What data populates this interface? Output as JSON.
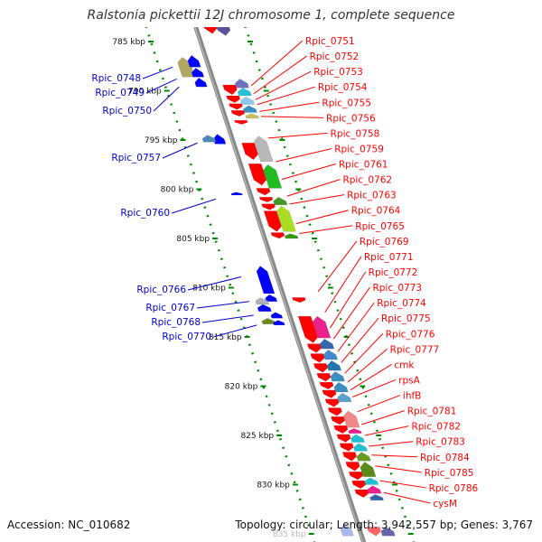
{
  "header": {
    "title": "Ralstonia pickettii 12J chromosome 1, complete sequence"
  },
  "footer": {
    "accession": "Accession: NC_010682",
    "summary": "Topology: circular; Length: 3,942,557 bp; Genes: 3,767"
  },
  "colors": {
    "red": "#ff0000",
    "blue": "#0000cc",
    "green": "#008800",
    "axis": "#888888"
  },
  "ticks": [
    {
      "kb": 785,
      "label": "785 kbp"
    },
    {
      "kb": 790,
      "label": "790 kbp"
    },
    {
      "kb": 795,
      "label": "795 kbp"
    },
    {
      "kb": 800,
      "label": "800 kbp"
    },
    {
      "kb": 805,
      "label": "805 kbp"
    },
    {
      "kb": 810,
      "label": "810 kbp"
    },
    {
      "kb": 815,
      "label": "815 kbp"
    },
    {
      "kb": 820,
      "label": "820 kbp"
    },
    {
      "kb": 825,
      "label": "825 kbp"
    },
    {
      "kb": 830,
      "label": "830 kbp"
    },
    {
      "kb": 835,
      "label": "835 kbp"
    }
  ],
  "right_labels": [
    {
      "name": "Rpic_0751",
      "kb": 789.5
    },
    {
      "name": "Rpic_0752",
      "kb": 790.3
    },
    {
      "name": "Rpic_0753",
      "kb": 790.9
    },
    {
      "name": "Rpic_0754",
      "kb": 791.4
    },
    {
      "name": "Rpic_0755",
      "kb": 792.1
    },
    {
      "name": "Rpic_0756",
      "kb": 792.6
    },
    {
      "name": "Rpic_0758",
      "kb": 794.8
    },
    {
      "name": "Rpic_0759",
      "kb": 797.2
    },
    {
      "name": "Rpic_0761",
      "kb": 799.0
    },
    {
      "name": "Rpic_0762",
      "kb": 800.7
    },
    {
      "name": "Rpic_0763",
      "kb": 801.5
    },
    {
      "name": "Rpic_0764",
      "kb": 803.5
    },
    {
      "name": "Rpic_0765",
      "kb": 804.5
    },
    {
      "name": "Rpic_0769",
      "kb": 810.4
    },
    {
      "name": "Rpic_0771",
      "kb": 812.5
    },
    {
      "name": "Rpic_0772",
      "kb": 814.1
    },
    {
      "name": "Rpic_0773",
      "kb": 815.2
    },
    {
      "name": "Rpic_0774",
      "kb": 816.5
    },
    {
      "name": "Rpic_0775",
      "kb": 817.6
    },
    {
      "name": "Rpic_0776",
      "kb": 818.7
    },
    {
      "name": "Rpic_0777",
      "kb": 819.6
    },
    {
      "name": "cmk",
      "kb": 820.4
    },
    {
      "name": "rpsA",
      "kb": 821.1
    },
    {
      "name": "ihfB",
      "kb": 822.6
    },
    {
      "name": "Rpic_0781",
      "kb": 823.9
    },
    {
      "name": "Rpic_0782",
      "kb": 825.0
    },
    {
      "name": "Rpic_0783",
      "kb": 826.1
    },
    {
      "name": "Rpic_0784",
      "kb": 827.0
    },
    {
      "name": "Rpic_0785",
      "kb": 828.1
    },
    {
      "name": "Rpic_0786",
      "kb": 829.6
    },
    {
      "name": "cysM",
      "kb": 830.8
    }
  ],
  "left_labels": [
    {
      "name": "Rpic_0748",
      "kb": 787.6
    },
    {
      "name": "Rpic_0749",
      "kb": 788.8
    },
    {
      "name": "Rpic_0750",
      "kb": 789.6
    },
    {
      "name": "Rpic_0757",
      "kb": 795.3
    },
    {
      "name": "Rpic_0760",
      "kb": 801.0
    },
    {
      "name": "Rpic_0766",
      "kb": 808.9
    },
    {
      "name": "Rpic_0767",
      "kb": 811.4
    },
    {
      "name": "Rpic_0768",
      "kb": 812.8
    },
    {
      "name": "Rpic_0770",
      "kb": 813.8
    }
  ],
  "genes": [
    {
      "track": 1,
      "start": 782.8,
      "end": 784.2,
      "strand": "-",
      "color": "#ff0000"
    },
    {
      "track": 2,
      "start": 782.8,
      "end": 784.4,
      "strand": "-",
      "color": "#5c4f9e"
    },
    {
      "track": 2,
      "start": 781.8,
      "end": 782.6,
      "strand": "+",
      "color": "#2cc0d8"
    },
    {
      "track": -2,
      "start": 786.6,
      "end": 788.6,
      "strand": "+",
      "color": "#b0a860"
    },
    {
      "track": -1,
      "start": 786.4,
      "end": 787.6,
      "strand": "+",
      "color": "#0000ff"
    },
    {
      "track": -1,
      "start": 787.7,
      "end": 788.6,
      "strand": "+",
      "color": "#0000ff"
    },
    {
      "track": -1,
      "start": 788.7,
      "end": 789.6,
      "strand": "+",
      "color": "#0000ff"
    },
    {
      "track": 1,
      "start": 789.4,
      "end": 790.4,
      "strand": "-",
      "color": "#ff0000"
    },
    {
      "track": 2,
      "start": 788.8,
      "end": 789.7,
      "strand": "+",
      "color": "#7070c0"
    },
    {
      "track": 2,
      "start": 789.7,
      "end": 790.5,
      "strand": "+",
      "color": "#2cc0d8"
    },
    {
      "track": 1,
      "start": 790.5,
      "end": 791.2,
      "strand": "-",
      "color": "#ff0000"
    },
    {
      "track": 2,
      "start": 790.6,
      "end": 791.4,
      "strand": "+",
      "color": "#8ec7e8"
    },
    {
      "track": 1,
      "start": 791.3,
      "end": 791.9,
      "strand": "-",
      "color": "#ff0000"
    },
    {
      "track": 2,
      "start": 791.5,
      "end": 792.2,
      "strand": "+",
      "color": "#3b8fc0"
    },
    {
      "track": 1,
      "start": 792.0,
      "end": 792.6,
      "strand": "-",
      "color": "#ff0000"
    },
    {
      "track": 2,
      "start": 792.3,
      "end": 792.8,
      "strand": "+",
      "color": "#c8c060"
    },
    {
      "track": 1,
      "start": 793.0,
      "end": 793.4,
      "strand": "-",
      "color": "#ff0000"
    },
    {
      "track": -1,
      "start": 794.4,
      "end": 795.4,
      "strand": "+",
      "color": "#0000ff"
    },
    {
      "track": -2,
      "start": 794.5,
      "end": 795.2,
      "strand": "+",
      "color": "#4a88b8"
    },
    {
      "track": 1,
      "start": 795.3,
      "end": 797.0,
      "strand": "-",
      "color": "#ff0000"
    },
    {
      "track": 2,
      "start": 794.6,
      "end": 797.2,
      "strand": "+",
      "color": "#b8b8b8"
    },
    {
      "track": 1,
      "start": 797.4,
      "end": 799.6,
      "strand": "-",
      "color": "#ff0000"
    },
    {
      "track": 2,
      "start": 797.5,
      "end": 799.9,
      "strand": "+",
      "color": "#22bb22"
    },
    {
      "track": 1,
      "start": 799.9,
      "end": 800.6,
      "strand": "-",
      "color": "#ff0000"
    },
    {
      "track": -1,
      "start": 800.3,
      "end": 800.6,
      "strand": "+",
      "color": "#0000ff"
    },
    {
      "track": 1,
      "start": 800.8,
      "end": 801.3,
      "strand": "-",
      "color": "#ff0000"
    },
    {
      "track": 2,
      "start": 800.8,
      "end": 801.6,
      "strand": "+",
      "color": "#449922"
    },
    {
      "track": 1,
      "start": 801.5,
      "end": 802.1,
      "strand": "-",
      "color": "#ff0000"
    },
    {
      "track": 1,
      "start": 802.2,
      "end": 804.3,
      "strand": "-",
      "color": "#ff0000"
    },
    {
      "track": 2,
      "start": 801.7,
      "end": 804.3,
      "strand": "+",
      "color": "#aadd22"
    },
    {
      "track": 1,
      "start": 804.4,
      "end": 805.0,
      "strand": "-",
      "color": "#ff0000"
    },
    {
      "track": 2,
      "start": 804.5,
      "end": 805.0,
      "strand": "+",
      "color": "#339911"
    },
    {
      "track": -1,
      "start": 807.8,
      "end": 810.6,
      "strand": "+",
      "color": "#0000ff"
    },
    {
      "track": 1,
      "start": 811.0,
      "end": 811.5,
      "strand": "-",
      "color": "#ff0000"
    },
    {
      "track": -1,
      "start": 810.7,
      "end": 811.4,
      "strand": "+",
      "color": "#0000ff"
    },
    {
      "track": -2,
      "start": 811.0,
      "end": 811.7,
      "strand": "+",
      "color": "#b0b0b8"
    },
    {
      "track": -2,
      "start": 811.7,
      "end": 812.4,
      "strand": "+",
      "color": "#0000ff"
    },
    {
      "track": -1,
      "start": 812.5,
      "end": 813.1,
      "strand": "+",
      "color": "#0000ff"
    },
    {
      "track": -2,
      "start": 813.1,
      "end": 813.7,
      "strand": "+",
      "color": "#6a8a1a"
    },
    {
      "track": -1,
      "start": 813.3,
      "end": 813.8,
      "strand": "+",
      "color": "#0000ff"
    },
    {
      "track": 1,
      "start": 812.9,
      "end": 815.6,
      "strand": "-",
      "color": "#ff0000"
    },
    {
      "track": 2,
      "start": 812.9,
      "end": 815.1,
      "strand": "+",
      "color": "#e8228a"
    },
    {
      "track": 1,
      "start": 815.7,
      "end": 816.6,
      "strand": "-",
      "color": "#ff0000"
    },
    {
      "track": 2,
      "start": 815.2,
      "end": 816.2,
      "strand": "+",
      "color": "#3366aa"
    },
    {
      "track": 1,
      "start": 816.7,
      "end": 817.6,
      "strand": "-",
      "color": "#ff0000"
    },
    {
      "track": 2,
      "start": 816.3,
      "end": 817.3,
      "strand": "+",
      "color": "#4488cc"
    },
    {
      "track": 1,
      "start": 817.7,
      "end": 818.6,
      "strand": "-",
      "color": "#ff0000"
    },
    {
      "track": 2,
      "start": 817.4,
      "end": 818.4,
      "strand": "+",
      "color": "#2277aa"
    },
    {
      "track": 1,
      "start": 818.7,
      "end": 819.5,
      "strand": "-",
      "color": "#ff0000"
    },
    {
      "track": 2,
      "start": 818.5,
      "end": 819.5,
      "strand": "+",
      "color": "#3b8fc0"
    },
    {
      "track": 1,
      "start": 819.6,
      "end": 820.3,
      "strand": "-",
      "color": "#ff0000"
    },
    {
      "track": 2,
      "start": 819.6,
      "end": 820.6,
      "strand": "+",
      "color": "#3b8fc0"
    },
    {
      "track": 1,
      "start": 820.4,
      "end": 821.2,
      "strand": "-",
      "color": "#ff0000"
    },
    {
      "track": 2,
      "start": 820.7,
      "end": 821.6,
      "strand": "+",
      "color": "#5aa0cc"
    },
    {
      "track": 1,
      "start": 821.3,
      "end": 822.1,
      "strand": "-",
      "color": "#ff0000"
    },
    {
      "track": 1,
      "start": 822.2,
      "end": 823.0,
      "strand": "-",
      "color": "#ff0000"
    },
    {
      "track": 1,
      "start": 823.1,
      "end": 823.9,
      "strand": "-",
      "color": "#ff0000"
    },
    {
      "track": 2,
      "start": 822.5,
      "end": 824.2,
      "strand": "+",
      "color": "#f08888"
    },
    {
      "track": 1,
      "start": 824.0,
      "end": 824.8,
      "strand": "-",
      "color": "#ff0000"
    },
    {
      "track": 2,
      "start": 824.3,
      "end": 824.8,
      "strand": "+",
      "color": "#e8228a"
    },
    {
      "track": 1,
      "start": 824.9,
      "end": 825.7,
      "strand": "-",
      "color": "#ff0000"
    },
    {
      "track": 2,
      "start": 824.9,
      "end": 825.7,
      "strand": "+",
      "color": "#22c0d0"
    },
    {
      "track": 1,
      "start": 825.8,
      "end": 826.6,
      "strand": "-",
      "color": "#ff0000"
    },
    {
      "track": 2,
      "start": 825.8,
      "end": 826.6,
      "strand": "+",
      "color": "#22c0d0"
    },
    {
      "track": 1,
      "start": 826.7,
      "end": 827.6,
      "strand": "-",
      "color": "#ff0000"
    },
    {
      "track": 2,
      "start": 826.7,
      "end": 827.6,
      "strand": "+",
      "color": "#6a9a22"
    },
    {
      "track": 1,
      "start": 827.7,
      "end": 828.6,
      "strand": "-",
      "color": "#ff0000"
    },
    {
      "track": 2,
      "start": 827.7,
      "end": 829.2,
      "strand": "+",
      "color": "#5a8a1a"
    },
    {
      "track": 1,
      "start": 828.7,
      "end": 829.5,
      "strand": "-",
      "color": "#ff0000"
    },
    {
      "track": 1,
      "start": 829.6,
      "end": 830.4,
      "strand": "-",
      "color": "#ff0000"
    },
    {
      "track": 2,
      "start": 829.3,
      "end": 830.0,
      "strand": "+",
      "color": "#22c0d0"
    },
    {
      "track": 1,
      "start": 830.5,
      "end": 831.3,
      "strand": "-",
      "color": "#ff0000"
    },
    {
      "track": 2,
      "start": 830.1,
      "end": 830.9,
      "strand": "+",
      "color": "#e8228a"
    },
    {
      "track": 2,
      "start": 831.0,
      "end": 831.6,
      "strand": "+",
      "color": "#3366aa"
    },
    {
      "track": -1,
      "start": 834.0,
      "end": 835.2,
      "strand": "+",
      "color": "#aab8ee"
    },
    {
      "track": 1,
      "start": 834.3,
      "end": 835.2,
      "strand": "-",
      "color": "#ff6666"
    },
    {
      "track": 2,
      "start": 834.3,
      "end": 835.2,
      "strand": "+",
      "color": "#6666aa"
    }
  ]
}
